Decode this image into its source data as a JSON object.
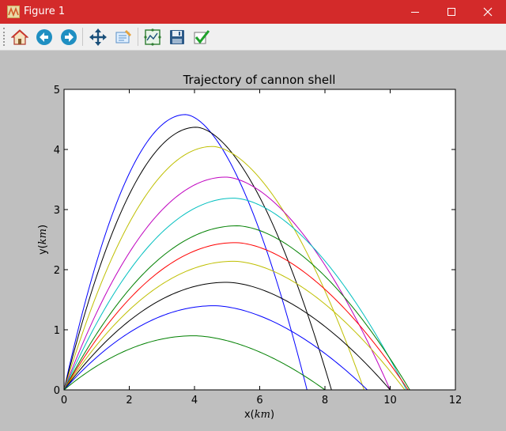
{
  "window": {
    "title": "Figure 1",
    "controls": {
      "minimize": "minimize",
      "maximize": "maximize",
      "close": "close"
    }
  },
  "toolbar": {
    "buttons": [
      {
        "name": "home",
        "icon": "home-icon"
      },
      {
        "name": "back",
        "icon": "back-arrow-icon"
      },
      {
        "name": "forward",
        "icon": "forward-arrow-icon"
      },
      {
        "name": "pan",
        "icon": "move-icon"
      },
      {
        "name": "zoom",
        "icon": "zoom-rect-icon"
      },
      {
        "name": "configure-subplots",
        "icon": "subplots-icon"
      },
      {
        "name": "save",
        "icon": "save-icon"
      },
      {
        "name": "edit-axis",
        "icon": "checkmark-icon"
      }
    ]
  },
  "chart_data": {
    "type": "line",
    "title": "Trajectory of cannon shell",
    "xlabel_main": "x(",
    "xlabel_unit": "km",
    "xlabel_end": ")",
    "ylabel_main": "y(",
    "ylabel_unit": "km",
    "ylabel_end": ")",
    "xlim": [
      0,
      12
    ],
    "ylim": [
      0,
      5
    ],
    "xticks": [
      0,
      2,
      4,
      6,
      8,
      10,
      12
    ],
    "yticks": [
      0,
      1,
      2,
      3,
      4,
      5
    ],
    "grid": false,
    "legend": "none",
    "series": [
      {
        "color": "#0000ff",
        "peak_x": 3.72,
        "peak_y": 4.58,
        "end_x": 7.45
      },
      {
        "color": "#000000",
        "peak_x": 4.05,
        "peak_y": 4.37,
        "end_x": 8.2
      },
      {
        "color": "#bfbf00",
        "peak_x": 4.55,
        "peak_y": 4.05,
        "end_x": 9.2
      },
      {
        "color": "#bf00bf",
        "peak_x": 4.95,
        "peak_y": 3.54,
        "end_x": 10.0
      },
      {
        "color": "#00bfbf",
        "peak_x": 5.2,
        "peak_y": 3.19,
        "end_x": 10.5
      },
      {
        "color": "#008000",
        "peak_x": 5.3,
        "peak_y": 2.73,
        "end_x": 10.6
      },
      {
        "color": "#ff0000",
        "peak_x": 5.25,
        "peak_y": 2.45,
        "end_x": 10.55
      },
      {
        "color": "#bfbf00",
        "peak_x": 5.2,
        "peak_y": 2.14,
        "end_x": 10.45
      },
      {
        "color": "#000000",
        "peak_x": 4.98,
        "peak_y": 1.79,
        "end_x": 10.0
      },
      {
        "color": "#0000ff",
        "peak_x": 4.6,
        "peak_y": 1.4,
        "end_x": 9.3
      },
      {
        "color": "#008000",
        "peak_x": 3.98,
        "peak_y": 0.9,
        "end_x": 8.0
      }
    ]
  }
}
